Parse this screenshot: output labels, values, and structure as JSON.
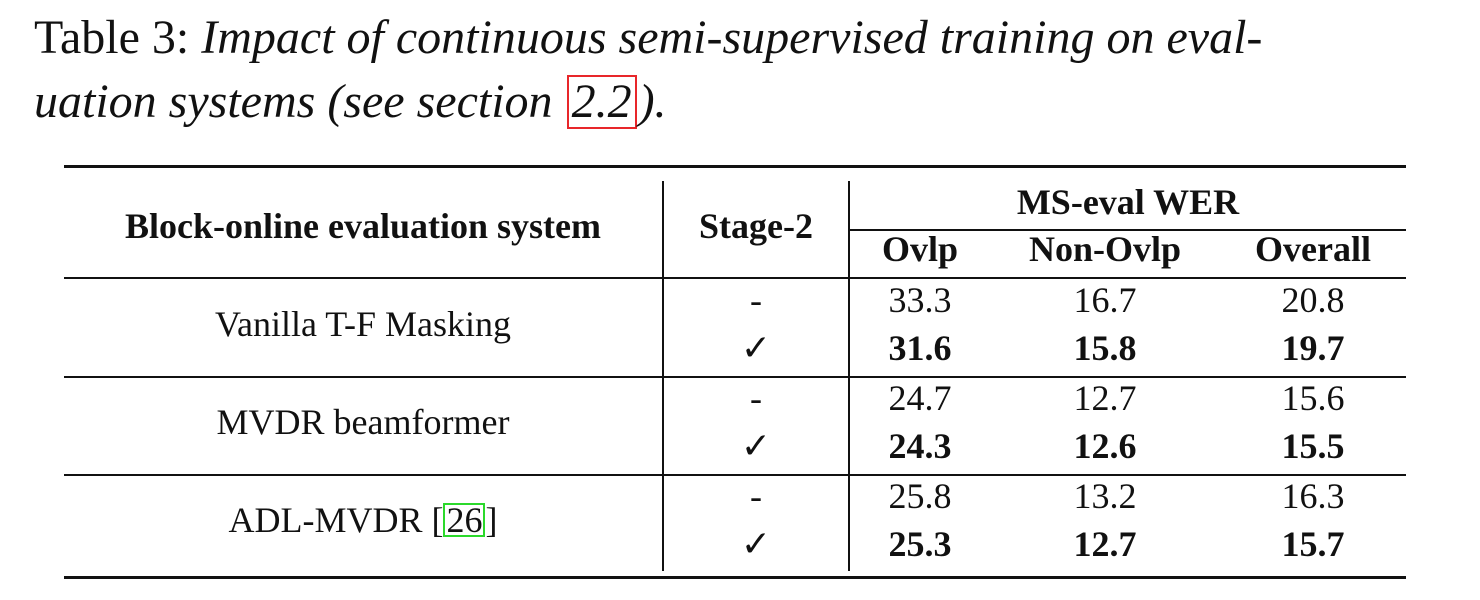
{
  "caption": {
    "label": "Table 3:",
    "text_line1": "Impact of continuous semi-supervised training on eval-",
    "text_line2_pre": "uation systems (see section ",
    "ref": "2.2",
    "text_line2_post": ")."
  },
  "table": {
    "headers": {
      "system": "Block-online evaluation system",
      "stage2": "Stage-2",
      "group": "MS-eval WER",
      "ovlp": "Ovlp",
      "nonovlp": "Non-Ovlp",
      "overall": "Overall"
    },
    "groups": [
      {
        "system": "Vanilla T-F Masking",
        "rows": [
          {
            "stage2": "-",
            "ovlp": "33.3",
            "nonovlp": "16.7",
            "overall": "20.8"
          },
          {
            "stage2": "✓",
            "ovlp": "31.6",
            "nonovlp": "15.8",
            "overall": "19.7"
          }
        ]
      },
      {
        "system": "MVDR beamformer",
        "rows": [
          {
            "stage2": "-",
            "ovlp": "24.7",
            "nonovlp": "12.7",
            "overall": "15.6"
          },
          {
            "stage2": "✓",
            "ovlp": "24.3",
            "nonovlp": "12.6",
            "overall": "15.5"
          }
        ]
      },
      {
        "system_pre": "ADL-MVDR [",
        "system_cite": "26",
        "system_post": "]",
        "rows": [
          {
            "stage2": "-",
            "ovlp": "25.8",
            "nonovlp": "13.2",
            "overall": "16.3"
          },
          {
            "stage2": "✓",
            "ovlp": "25.3",
            "nonovlp": "12.7",
            "overall": "15.7"
          }
        ]
      }
    ]
  }
}
